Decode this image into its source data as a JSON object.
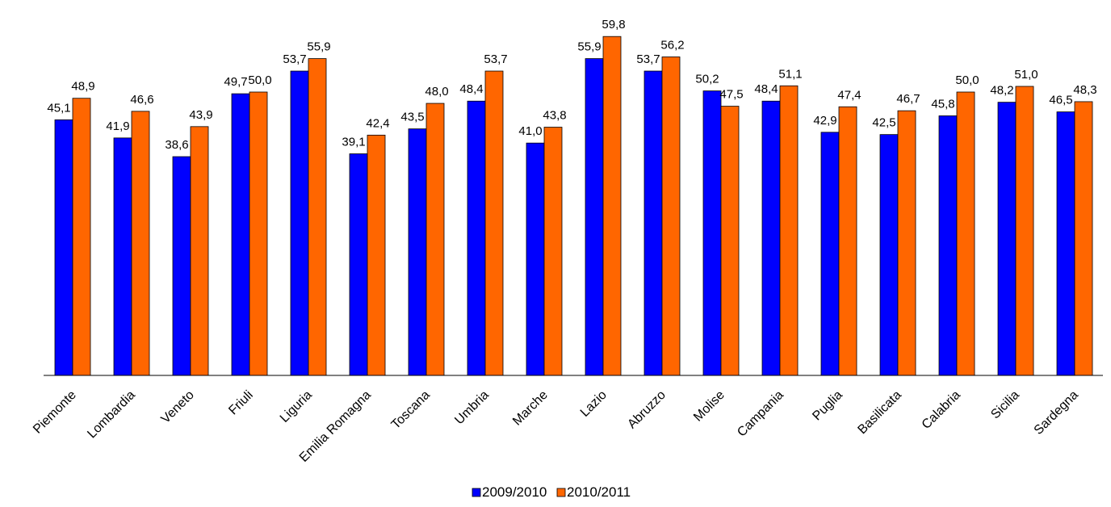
{
  "chart_data": {
    "type": "bar",
    "categories": [
      "Piemonte",
      "Lombardia",
      "Veneto",
      "Friuli",
      "Liguria",
      "Emilia Romagna",
      "Toscana",
      "Umbria",
      "Marche",
      "Lazio",
      "Abruzzo",
      "Molise",
      "Campania",
      "Puglia",
      "Basilicata",
      "Calabria",
      "Sicilia",
      "Sardegna"
    ],
    "series": [
      {
        "name": "2009/2010",
        "color": "#0000ff",
        "values": [
          45.1,
          41.9,
          38.6,
          49.7,
          53.7,
          39.1,
          43.5,
          48.4,
          41.0,
          55.9,
          53.7,
          50.2,
          48.4,
          42.9,
          42.5,
          45.8,
          48.2,
          46.5
        ],
        "labels": [
          "45,1",
          "41,9",
          "38,6",
          "49,7",
          "53,7",
          "39,1",
          "43,5",
          "48,4",
          "41,0",
          "55,9",
          "53,7",
          "50,2",
          "48,4",
          "42,9",
          "42,5",
          "45,8",
          "48,2",
          "46,5"
        ]
      },
      {
        "name": "2010/2011",
        "color": "#ff6600",
        "values": [
          48.9,
          46.6,
          43.9,
          50.0,
          55.9,
          42.4,
          48.0,
          53.7,
          43.8,
          59.8,
          56.2,
          47.5,
          51.1,
          47.4,
          46.7,
          50.0,
          51.0,
          48.3
        ],
        "labels": [
          "48,9",
          "46,6",
          "43,9",
          "50,0",
          "55,9",
          "42,4",
          "48,0",
          "53,7",
          "43,8",
          "59,8",
          "56,2",
          "47,5",
          "51,1",
          "47,4",
          "46,7",
          "50,0",
          "51,0",
          "48,3"
        ]
      }
    ],
    "ylim": [
      0,
      60
    ],
    "legend_position": "bottom",
    "grid": false
  }
}
